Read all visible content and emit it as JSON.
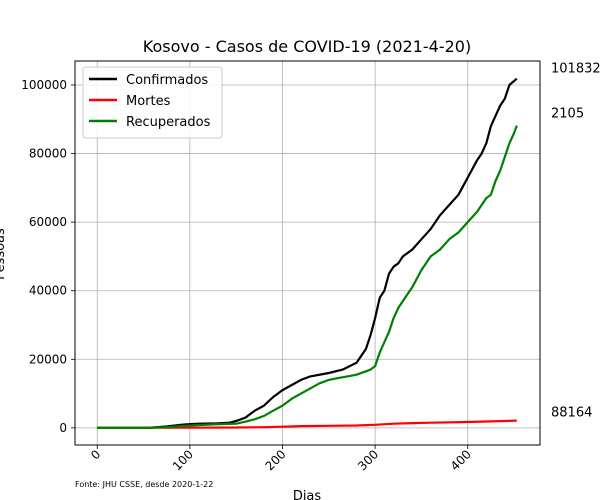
{
  "chart_data": {
    "type": "line",
    "title": "Kosovo - Casos de COVID-19 (2021-4-20)",
    "xlabel": "Dias",
    "ylabel": "Pessoas",
    "xlim": [
      -24,
      478
    ],
    "ylim": [
      -5000,
      107000
    ],
    "xticks": [
      0,
      100,
      200,
      300,
      400
    ],
    "yticks": [
      0,
      20000,
      40000,
      60000,
      80000,
      100000
    ],
    "xtick_rotation": 45,
    "grid": true,
    "legend_position": "top-left",
    "source_note": "Fonte: JHU CSSE, desde 2020-1-22",
    "end_labels": [
      "101832",
      "88164",
      "2105"
    ],
    "series": [
      {
        "name": "Confirmados",
        "color": "#000000",
        "points": [
          [
            0,
            0
          ],
          [
            50,
            0
          ],
          [
            60,
            100
          ],
          [
            75,
            400
          ],
          [
            90,
            900
          ],
          [
            100,
            1100
          ],
          [
            110,
            1200
          ],
          [
            130,
            1300
          ],
          [
            143,
            1500
          ],
          [
            150,
            2000
          ],
          [
            160,
            3000
          ],
          [
            170,
            5000
          ],
          [
            180,
            6500
          ],
          [
            190,
            9000
          ],
          [
            200,
            11000
          ],
          [
            210,
            12500
          ],
          [
            220,
            14000
          ],
          [
            230,
            15000
          ],
          [
            250,
            16000
          ],
          [
            265,
            17000
          ],
          [
            280,
            19000
          ],
          [
            285,
            21000
          ],
          [
            290,
            23000
          ],
          [
            295,
            27000
          ],
          [
            300,
            32000
          ],
          [
            305,
            38000
          ],
          [
            310,
            40000
          ],
          [
            315,
            45000
          ],
          [
            320,
            47000
          ],
          [
            325,
            48000
          ],
          [
            330,
            50000
          ],
          [
            340,
            52000
          ],
          [
            350,
            55000
          ],
          [
            360,
            58000
          ],
          [
            370,
            62000
          ],
          [
            380,
            65000
          ],
          [
            390,
            68000
          ],
          [
            400,
            73000
          ],
          [
            410,
            78000
          ],
          [
            415,
            80000
          ],
          [
            420,
            83000
          ],
          [
            425,
            88000
          ],
          [
            430,
            91000
          ],
          [
            435,
            94000
          ],
          [
            440,
            96000
          ],
          [
            445,
            100000
          ],
          [
            453,
            101832
          ]
        ]
      },
      {
        "name": "Mortes",
        "color": "#ff0000",
        "points": [
          [
            0,
            0
          ],
          [
            100,
            50
          ],
          [
            150,
            100
          ],
          [
            180,
            200
          ],
          [
            200,
            350
          ],
          [
            220,
            500
          ],
          [
            250,
            600
          ],
          [
            280,
            700
          ],
          [
            300,
            900
          ],
          [
            320,
            1200
          ],
          [
            340,
            1400
          ],
          [
            360,
            1500
          ],
          [
            380,
            1600
          ],
          [
            400,
            1700
          ],
          [
            420,
            1850
          ],
          [
            440,
            2000
          ],
          [
            453,
            2105
          ]
        ]
      },
      {
        "name": "Recuperados",
        "color": "#008000",
        "points": [
          [
            0,
            0
          ],
          [
            50,
            0
          ],
          [
            75,
            200
          ],
          [
            100,
            700
          ],
          [
            125,
            1000
          ],
          [
            150,
            1200
          ],
          [
            160,
            1800
          ],
          [
            170,
            2500
          ],
          [
            180,
            3500
          ],
          [
            190,
            5000
          ],
          [
            200,
            6500
          ],
          [
            210,
            8500
          ],
          [
            220,
            10000
          ],
          [
            230,
            11500
          ],
          [
            240,
            13000
          ],
          [
            250,
            14000
          ],
          [
            260,
            14500
          ],
          [
            270,
            15000
          ],
          [
            280,
            15500
          ],
          [
            290,
            16500
          ],
          [
            295,
            17000
          ],
          [
            300,
            18000
          ],
          [
            305,
            22000
          ],
          [
            310,
            25000
          ],
          [
            315,
            28000
          ],
          [
            320,
            32000
          ],
          [
            325,
            35000
          ],
          [
            330,
            37000
          ],
          [
            340,
            41000
          ],
          [
            350,
            46000
          ],
          [
            360,
            50000
          ],
          [
            370,
            52000
          ],
          [
            380,
            55000
          ],
          [
            390,
            57000
          ],
          [
            400,
            60000
          ],
          [
            410,
            63000
          ],
          [
            420,
            67000
          ],
          [
            425,
            68000
          ],
          [
            430,
            72000
          ],
          [
            435,
            75000
          ],
          [
            440,
            79000
          ],
          [
            445,
            83000
          ],
          [
            450,
            86000
          ],
          [
            453,
            88164
          ]
        ]
      }
    ]
  }
}
